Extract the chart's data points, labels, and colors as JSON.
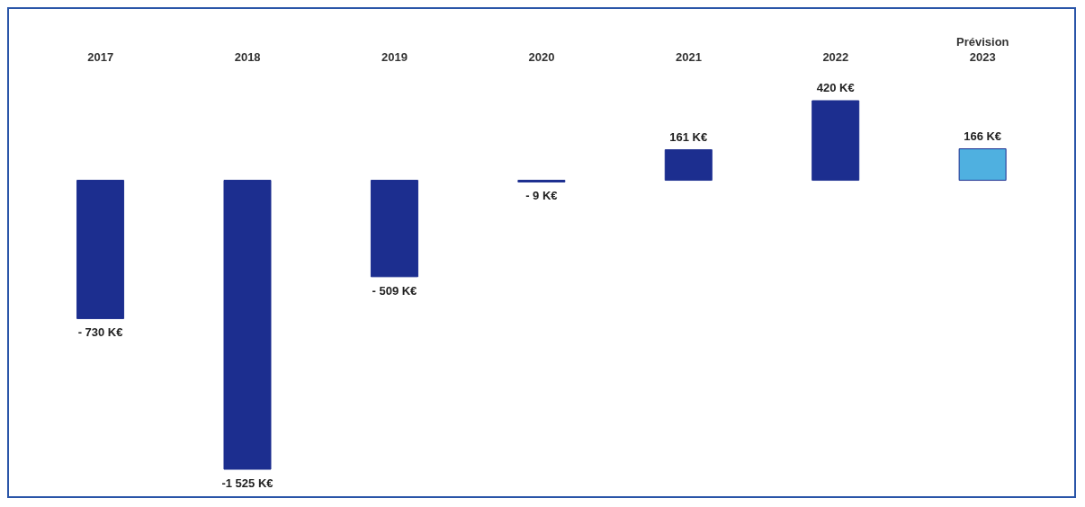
{
  "chart_data": {
    "type": "bar",
    "categories": [
      "2017",
      "2018",
      "2019",
      "2020",
      "2021",
      "2022",
      "Prévision\n2023"
    ],
    "values": [
      -730,
      -1525,
      -509,
      -9,
      161,
      420,
      166
    ],
    "colors": [
      "#1c2e8f",
      "#1c2e8f",
      "#1c2e8f",
      "#1c2e8f",
      "#1c2e8f",
      "#1c2e8f",
      "#4fb0e0"
    ],
    "value_labels": [
      "- 730 K€",
      "-1 525 K€",
      "- 509 K€",
      "- 9 K€",
      "161 K€",
      "420 K€",
      "166 K€"
    ],
    "grid": false,
    "legend": false
  }
}
